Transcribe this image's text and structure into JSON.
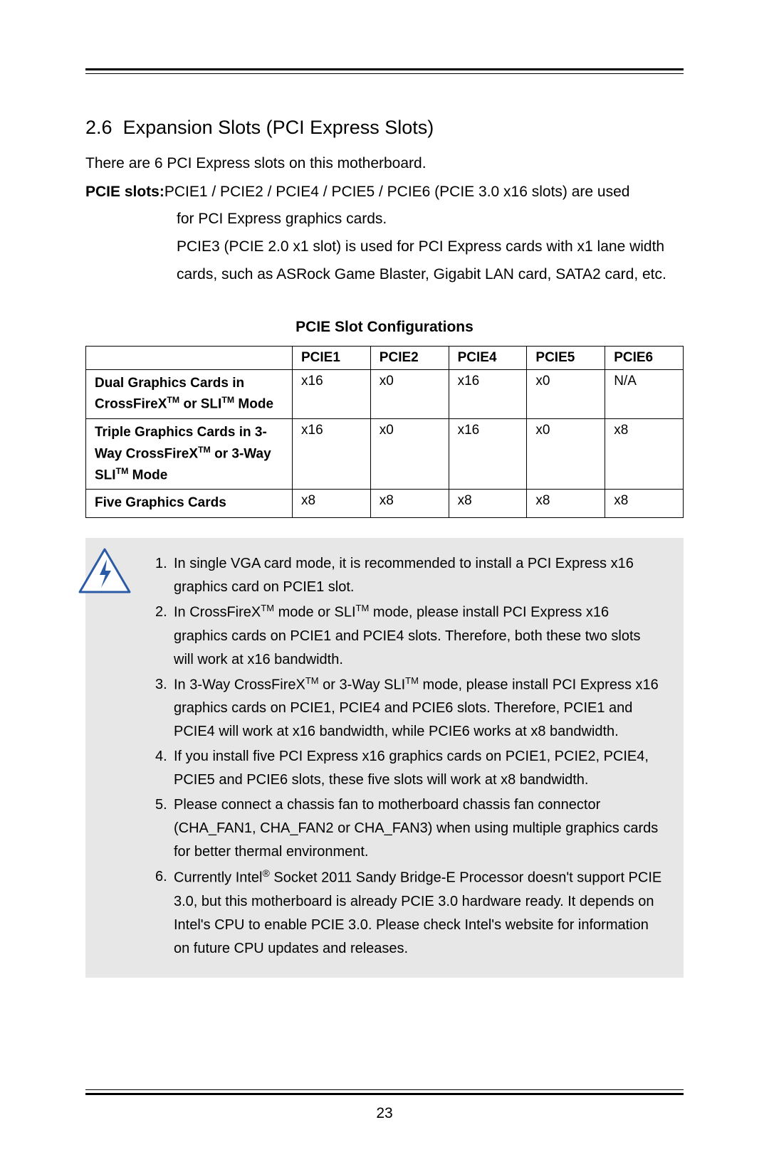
{
  "section": {
    "number": "2.6",
    "title": "Expansion Slots (PCI Express Slots)"
  },
  "intro": "There are 6 PCI Express slots on this motherboard.",
  "pcie_label": "PCIE slots:",
  "pcie_line1": "PCIE1 / PCIE2 / PCIE4 / PCIE5 / PCIE6 (PCIE 3.0 x16 slots) are used",
  "pcie_line2": "for PCI Express graphics cards.",
  "pcie_line3": "PCIE3 (PCIE 2.0 x1 slot) is used for PCI Express cards with x1 lane width cards, such as ASRock Game Blaster, Gigabit LAN card, SATA2 card, etc.",
  "table": {
    "title": "PCIE Slot Configurations",
    "columns": [
      "",
      "PCIE1",
      "PCIE2",
      "PCIE4",
      "PCIE5",
      "PCIE6"
    ],
    "rows": [
      {
        "label_html": "Dual Graphics Cards in CrossFireX<span class=\"tm\">TM</span> or SLI<span class=\"tm\">TM</span> Mode",
        "cells": [
          "x16",
          "x0",
          "x16",
          "x0",
          "N/A"
        ]
      },
      {
        "label_html": "Triple Graphics Cards in 3-Way CrossFireX<span class=\"tm\">TM</span> or 3-Way SLI<span class=\"tm\">TM</span> Mode",
        "cells": [
          "x16",
          "x0",
          "x16",
          "x0",
          "x8"
        ]
      },
      {
        "label_html": "Five Graphics Cards",
        "cells": [
          "x8",
          "x8",
          "x8",
          "x8",
          "x8"
        ]
      }
    ]
  },
  "notes": [
    {
      "n": "1.",
      "html": "In single VGA card mode, it is recommended to install a PCI Express x16 graphics card on PCIE1 slot."
    },
    {
      "n": "2.",
      "html": "In CrossFireX<span class=\"tm\">TM</span> mode or SLI<span class=\"tm\">TM</span> mode, please install PCI Express x16 graphics cards on PCIE1 and PCIE4 slots. Therefore, both these two slots will work at x16 bandwidth."
    },
    {
      "n": "3.",
      "html": "In 3-Way CrossFireX<span class=\"tm\">TM</span> or 3-Way SLI<span class=\"tm\">TM</span> mode, please install PCI Express x16 graphics cards on PCIE1, PCIE4 and PCIE6 slots. Therefore, PCIE1 and PCIE4 will work at x16 bandwidth, while PCIE6 works at x8 bandwidth."
    },
    {
      "n": "4.",
      "html": "If you install five PCI Express x16 graphics cards on PCIE1, PCIE2, PCIE4, PCIE5 and PCIE6 slots, these five slots will work at x8 bandwidth."
    },
    {
      "n": "5.",
      "html": "Please connect a chassis fan to motherboard chassis fan connector (CHA_FAN1, CHA_FAN2 or CHA_FAN3) when using multiple graphics cards for better thermal environment."
    },
    {
      "n": "6.",
      "html": "Currently Intel<span class=\"reg\">®</span> Socket 2011 Sandy Bridge-E Processor doesn't support PCIE 3.0, but this motherboard is already PCIE 3.0 hardware ready. It depends on Intel's CPU to enable PCIE 3.0. Please check Intel's website for information on future CPU updates and releases."
    }
  ],
  "page_number": "23",
  "colors": {
    "note_bg": "#e7e7e7",
    "text": "#000000",
    "icon_stroke": "#2b5aa6",
    "icon_fill": "#ffffff"
  }
}
